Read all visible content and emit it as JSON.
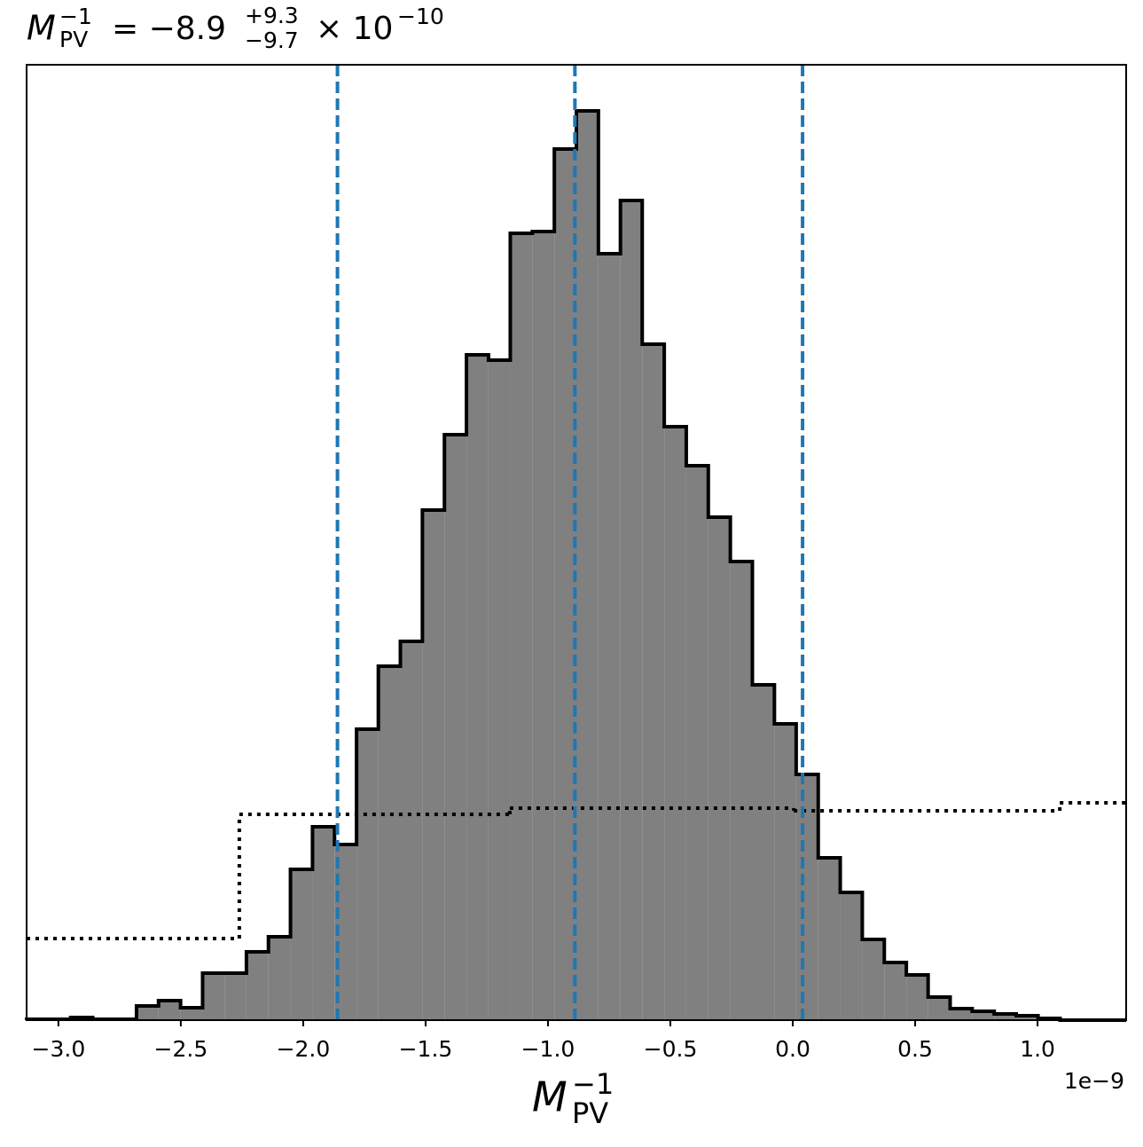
{
  "chart_data": {
    "type": "histogram",
    "title": {
      "symbol": "M",
      "sub": "PV",
      "sup": "−1",
      "eq": "= −8.9",
      "upper": "+9.3",
      "lower": "−9.7",
      "times": "× 10",
      "exp": "−10"
    },
    "x_label": {
      "symbol": "M",
      "sub": "PV",
      "sup": "−1"
    },
    "x_offset_text": "1e−9",
    "bins": [
      -3.13,
      -3.04,
      -2.95,
      -2.86,
      -2.771,
      -2.681,
      -2.591,
      -2.501,
      -2.411,
      -2.321,
      -2.232,
      -2.142,
      -2.052,
      -1.962,
      -1.872,
      -1.782,
      -1.693,
      -1.603,
      -1.513,
      -1.423,
      -1.333,
      -1.243,
      -1.154,
      -1.064,
      -0.974,
      -0.884,
      -0.794,
      -0.704,
      -0.615,
      -0.525,
      -0.435,
      -0.345,
      -0.255,
      -0.165,
      -0.075,
      0.014,
      0.104,
      0.194,
      0.284,
      0.374,
      0.464,
      0.553,
      0.643,
      0.733,
      0.823,
      0.913,
      1.002,
      1.092,
      1.182,
      1.272,
      1.362
    ],
    "values": [
      1,
      1,
      3,
      1,
      1,
      16,
      22,
      14,
      53,
      53,
      77,
      94,
      170,
      218,
      198,
      328,
      399,
      427,
      575,
      660,
      750,
      744,
      887,
      889,
      982,
      1025,
      864,
      924,
      762,
      669,
      625,
      567,
      517,
      378,
      334,
      277,
      183,
      144,
      91,
      65,
      51,
      26,
      13,
      10,
      7,
      5,
      2,
      0,
      0,
      0
    ],
    "color": "#808080",
    "edge_color": "#000000",
    "reference_step": {
      "edges": [
        -3.13,
        -2.261,
        -1.156,
        0.004,
        1.091,
        1.362
      ],
      "values": [
        92,
        232,
        239,
        236,
        245
      ],
      "color": "#000000"
    },
    "quantile_lines": {
      "values": [
        -1.86,
        -0.89,
        0.04
      ],
      "color": "#1f77b4"
    },
    "xlim": [
      -3.13,
      1.362
    ],
    "ylim": [
      0,
      1077
    ],
    "xticks": [
      {
        "value": -3.0,
        "label": "−3.0"
      },
      {
        "value": -2.5,
        "label": "−2.5"
      },
      {
        "value": -2.0,
        "label": "−2.0"
      },
      {
        "value": -1.5,
        "label": "−1.5"
      },
      {
        "value": -1.0,
        "label": "−1.0"
      },
      {
        "value": -0.5,
        "label": "−0.5"
      },
      {
        "value": 0.0,
        "label": "0.0"
      },
      0.5,
      {
        "value": 1.0,
        "label": "1.0"
      }
    ]
  }
}
